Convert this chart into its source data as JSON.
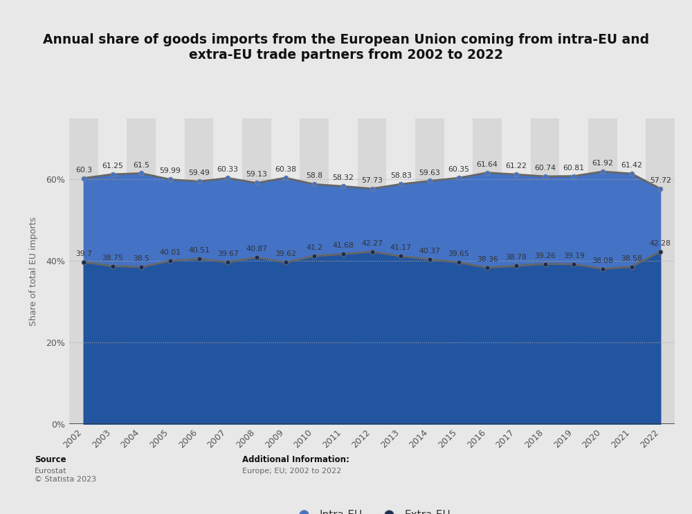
{
  "title": "Annual share of goods imports from the European Union coming from intra-EU and\nextra-EU trade partners from 2002 to 2022",
  "years": [
    2002,
    2003,
    2004,
    2005,
    2006,
    2007,
    2008,
    2009,
    2010,
    2011,
    2012,
    2013,
    2014,
    2015,
    2016,
    2017,
    2018,
    2019,
    2020,
    2021,
    2022
  ],
  "intra_eu": [
    60.3,
    61.25,
    61.5,
    59.99,
    59.49,
    60.33,
    59.13,
    60.38,
    58.8,
    58.32,
    57.73,
    58.83,
    59.63,
    60.35,
    61.64,
    61.22,
    60.74,
    60.81,
    61.92,
    61.42,
    57.72
  ],
  "extra_eu": [
    39.7,
    38.75,
    38.5,
    40.01,
    40.51,
    39.67,
    40.87,
    39.62,
    41.2,
    41.68,
    42.27,
    41.17,
    40.37,
    39.65,
    38.36,
    38.78,
    39.26,
    39.19,
    38.08,
    38.58,
    42.28
  ],
  "intra_color": "#4472C4",
  "extra_color": "#1a2e52",
  "line_intra_color": "#5a5a5a",
  "line_extra_color": "#5a5a5a",
  "bg_color": "#e8e8e8",
  "plot_bg_color": "#e8e8e8",
  "column_even_color": "#d8d8d8",
  "column_odd_color": "#e8e8e8",
  "ylabel": "Share of total EU imports",
  "yticks": [
    0,
    20,
    40,
    60
  ],
  "ytick_labels": [
    "0%",
    "20%",
    "40%",
    "60%"
  ],
  "source_label": "Source",
  "source_text": "Eurostat\n© Statista 2023",
  "additional_label": "Additional Information:",
  "additional_text": "Europe; EU; 2002 to 2022",
  "legend_intra": "Intra-EU",
  "legend_extra": "Extra-EU",
  "title_fontsize": 13.5,
  "annotation_fontsize": 7.8,
  "grid_color": "#aaaaaa",
  "fill_intra_color": "#4472C4",
  "fill_extra_color": "#2255a0",
  "ylim_max": 75
}
